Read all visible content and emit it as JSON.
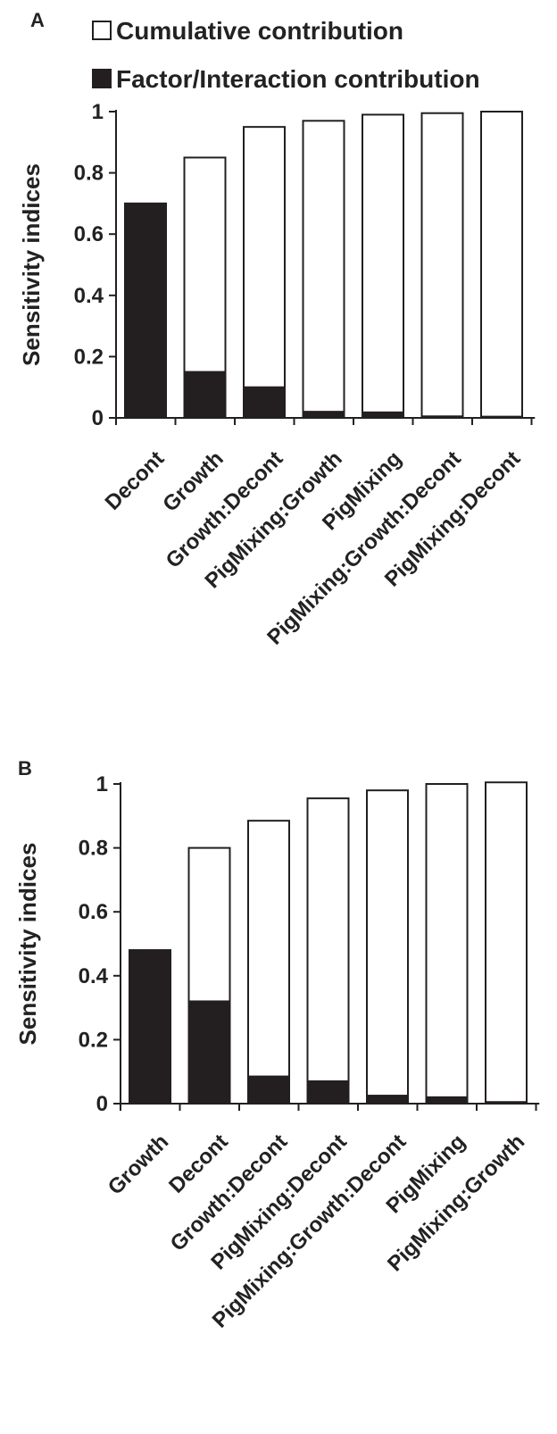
{
  "legend": {
    "cumulative_label": "Cumulative contribution",
    "factor_label": "Factor/Interaction contribution"
  },
  "colors": {
    "cumulative_fill": "#ffffff",
    "factor_fill": "#231f20",
    "axis": "#231f20"
  },
  "chart_data": [
    {
      "panel": "A",
      "type": "bar",
      "ylabel": "Sensitivity indices",
      "ylim": [
        0,
        1
      ],
      "yticks": [
        "0",
        "0.2",
        "0.4",
        "0.6",
        "0.8",
        "1"
      ],
      "categories": [
        "Decont",
        "Growth",
        "Growth:Decont",
        "PigMixing:Growth",
        "PigMixing",
        "PigMixing:Growth:Decont",
        "PigMixing:Decont"
      ],
      "series": [
        {
          "name": "Cumulative contribution",
          "values": [
            0.7,
            0.85,
            0.95,
            0.97,
            0.99,
            0.995,
            1.0
          ]
        },
        {
          "name": "Factor/Interaction contribution",
          "values": [
            0.7,
            0.15,
            0.1,
            0.02,
            0.018,
            0.005,
            0.004
          ]
        }
      ]
    },
    {
      "panel": "B",
      "type": "bar",
      "ylabel": "Sensitivity indices",
      "ylim": [
        0,
        1
      ],
      "yticks": [
        "0",
        "0.2",
        "0.4",
        "0.6",
        "0.8",
        "1"
      ],
      "categories": [
        "Growth",
        "Decont",
        "Growth:Decont",
        "PigMixing:Decont",
        "PigMixing:Growth:Decont",
        "PigMixing",
        "PigMixing:Growth"
      ],
      "series": [
        {
          "name": "Cumulative contribution",
          "values": [
            0.48,
            0.8,
            0.885,
            0.955,
            0.98,
            1.0,
            1.005
          ]
        },
        {
          "name": "Factor/Interaction contribution",
          "values": [
            0.48,
            0.32,
            0.085,
            0.07,
            0.025,
            0.02,
            0.005
          ]
        }
      ]
    }
  ]
}
